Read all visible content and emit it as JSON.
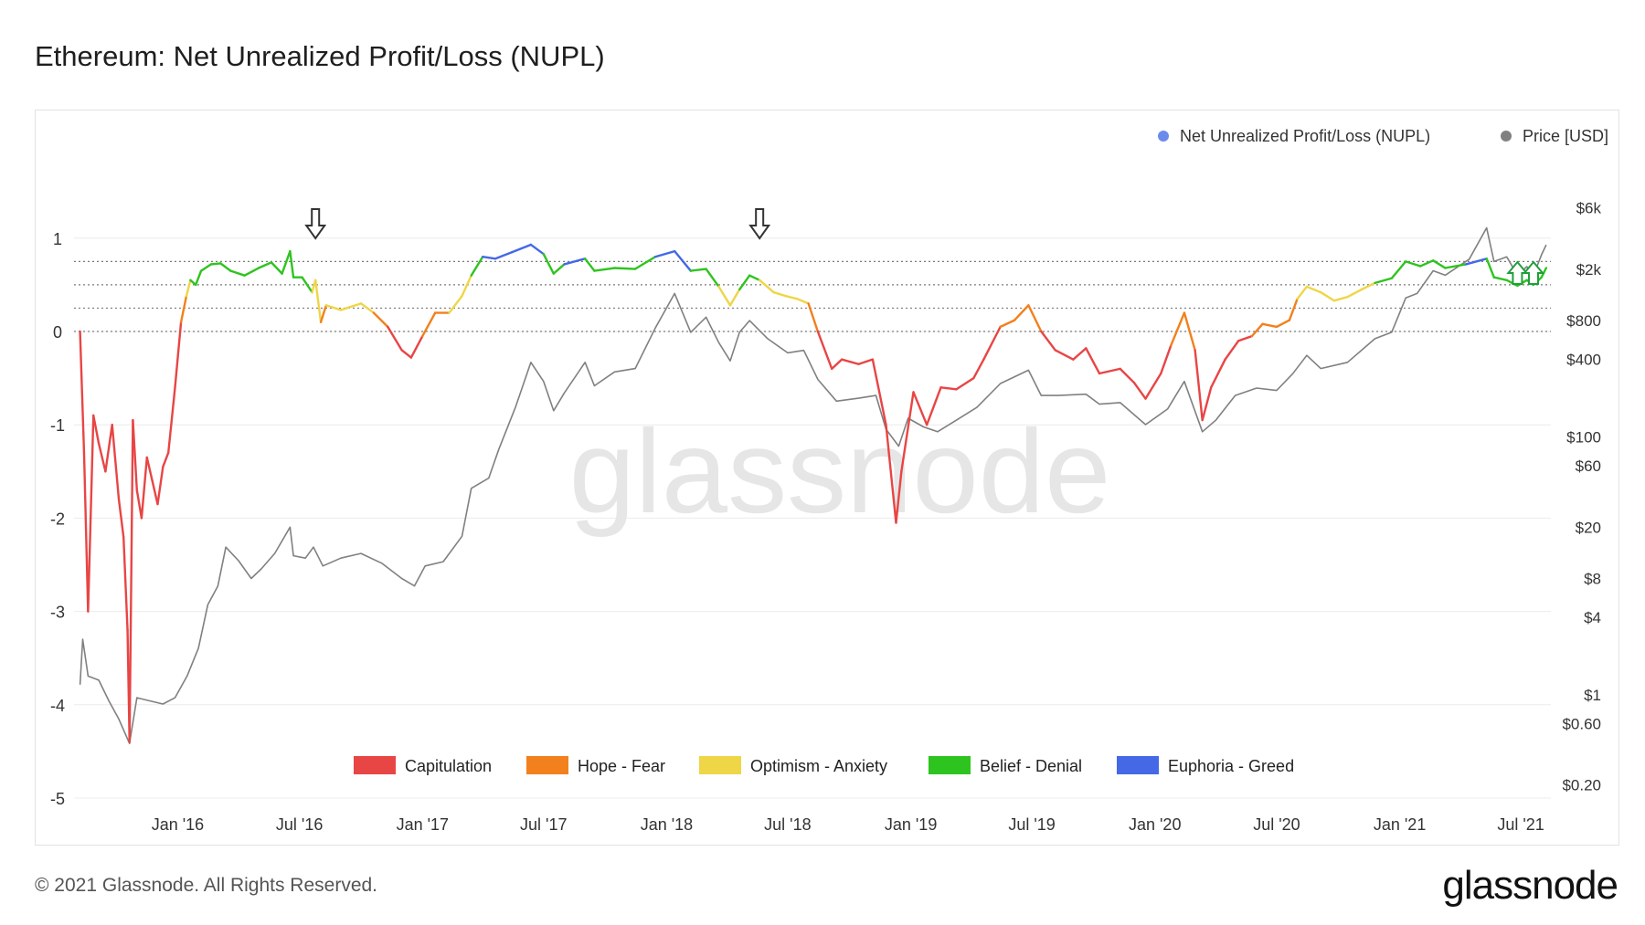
{
  "header": {
    "title": "Ethereum: Net Unrealized Profit/Loss (NUPL)"
  },
  "footer": {
    "copyright": "© 2021 Glassnode. All Rights Reserved.",
    "brand": "glassnode"
  },
  "chart_data": {
    "type": "line",
    "title": "Ethereum: Net Unrealized Profit/Loss (NUPL)",
    "watermark": "glassnode",
    "series": [
      {
        "name": "Net Unrealized Profit/Loss (NUPL)",
        "axis": "left",
        "legend_color": "#6b8bec",
        "points": [
          [
            "2015-08-08",
            0.0
          ],
          [
            "2015-08-14",
            -1.3
          ],
          [
            "2015-08-20",
            -3.0
          ],
          [
            "2015-08-28",
            -0.9
          ],
          [
            "2015-09-05",
            -1.2
          ],
          [
            "2015-09-15",
            -1.5
          ],
          [
            "2015-09-25",
            -1.0
          ],
          [
            "2015-10-05",
            -1.8
          ],
          [
            "2015-10-12",
            -2.2
          ],
          [
            "2015-10-18",
            -3.2
          ],
          [
            "2015-10-21",
            -4.4
          ],
          [
            "2015-10-26",
            -0.95
          ],
          [
            "2015-11-01",
            -1.7
          ],
          [
            "2015-11-08",
            -2.0
          ],
          [
            "2015-11-16",
            -1.35
          ],
          [
            "2015-11-24",
            -1.6
          ],
          [
            "2015-12-02",
            -1.85
          ],
          [
            "2015-12-10",
            -1.45
          ],
          [
            "2015-12-18",
            -1.3
          ],
          [
            "2015-12-28",
            -0.6
          ],
          [
            "2016-01-06",
            0.1
          ],
          [
            "2016-01-14",
            0.38
          ],
          [
            "2016-01-20",
            0.55
          ],
          [
            "2016-01-28",
            0.5
          ],
          [
            "2016-02-05",
            0.65
          ],
          [
            "2016-02-20",
            0.72
          ],
          [
            "2016-03-05",
            0.73
          ],
          [
            "2016-03-20",
            0.65
          ],
          [
            "2016-04-10",
            0.6
          ],
          [
            "2016-05-01",
            0.68
          ],
          [
            "2016-05-20",
            0.74
          ],
          [
            "2016-06-05",
            0.62
          ],
          [
            "2016-06-17",
            0.86
          ],
          [
            "2016-06-22",
            0.58
          ],
          [
            "2016-07-05",
            0.58
          ],
          [
            "2016-07-20",
            0.42
          ],
          [
            "2016-07-25",
            0.55
          ],
          [
            "2016-08-02",
            0.1
          ],
          [
            "2016-08-10",
            0.28
          ],
          [
            "2016-09-01",
            0.23
          ],
          [
            "2016-10-01",
            0.3
          ],
          [
            "2016-10-20",
            0.2
          ],
          [
            "2016-11-10",
            0.05
          ],
          [
            "2016-12-01",
            -0.2
          ],
          [
            "2016-12-15",
            -0.28
          ],
          [
            "2017-01-01",
            -0.05
          ],
          [
            "2017-01-20",
            0.2
          ],
          [
            "2017-02-10",
            0.2
          ],
          [
            "2017-03-01",
            0.38
          ],
          [
            "2017-03-15",
            0.6
          ],
          [
            "2017-04-01",
            0.8
          ],
          [
            "2017-04-20",
            0.78
          ],
          [
            "2017-05-15",
            0.85
          ],
          [
            "2017-06-12",
            0.93
          ],
          [
            "2017-07-01",
            0.83
          ],
          [
            "2017-07-16",
            0.62
          ],
          [
            "2017-08-01",
            0.72
          ],
          [
            "2017-09-01",
            0.78
          ],
          [
            "2017-09-15",
            0.65
          ],
          [
            "2017-10-15",
            0.68
          ],
          [
            "2017-11-15",
            0.67
          ],
          [
            "2017-12-15",
            0.8
          ],
          [
            "2018-01-13",
            0.86
          ],
          [
            "2018-02-06",
            0.65
          ],
          [
            "2018-03-01",
            0.67
          ],
          [
            "2018-03-20",
            0.48
          ],
          [
            "2018-04-06",
            0.28
          ],
          [
            "2018-04-20",
            0.45
          ],
          [
            "2018-05-05",
            0.6
          ],
          [
            "2018-05-20",
            0.55
          ],
          [
            "2018-06-10",
            0.42
          ],
          [
            "2018-06-28",
            0.38
          ],
          [
            "2018-07-15",
            0.35
          ],
          [
            "2018-08-01",
            0.3
          ],
          [
            "2018-08-15",
            0.0
          ],
          [
            "2018-09-05",
            -0.4
          ],
          [
            "2018-09-20",
            -0.3
          ],
          [
            "2018-10-15",
            -0.35
          ],
          [
            "2018-11-05",
            -0.3
          ],
          [
            "2018-11-25",
            -1.0
          ],
          [
            "2018-12-10",
            -2.05
          ],
          [
            "2018-12-18",
            -1.5
          ],
          [
            "2019-01-05",
            -0.65
          ],
          [
            "2019-01-25",
            -1.0
          ],
          [
            "2019-02-15",
            -0.6
          ],
          [
            "2019-03-10",
            -0.62
          ],
          [
            "2019-04-05",
            -0.5
          ],
          [
            "2019-04-20",
            -0.3
          ],
          [
            "2019-05-15",
            0.05
          ],
          [
            "2019-06-05",
            0.12
          ],
          [
            "2019-06-26",
            0.28
          ],
          [
            "2019-07-15",
            0.0
          ],
          [
            "2019-08-05",
            -0.2
          ],
          [
            "2019-09-01",
            -0.3
          ],
          [
            "2019-09-20",
            -0.18
          ],
          [
            "2019-10-10",
            -0.45
          ],
          [
            "2019-11-10",
            -0.4
          ],
          [
            "2019-12-01",
            -0.55
          ],
          [
            "2019-12-18",
            -0.72
          ],
          [
            "2020-01-10",
            -0.45
          ],
          [
            "2020-01-25",
            -0.15
          ],
          [
            "2020-02-14",
            0.2
          ],
          [
            "2020-03-01",
            -0.2
          ],
          [
            "2020-03-12",
            -0.95
          ],
          [
            "2020-03-25",
            -0.6
          ],
          [
            "2020-04-15",
            -0.3
          ],
          [
            "2020-05-05",
            -0.1
          ],
          [
            "2020-05-25",
            -0.05
          ],
          [
            "2020-06-10",
            0.08
          ],
          [
            "2020-07-01",
            0.05
          ],
          [
            "2020-07-20",
            0.12
          ],
          [
            "2020-08-01",
            0.35
          ],
          [
            "2020-08-15",
            0.48
          ],
          [
            "2020-09-05",
            0.42
          ],
          [
            "2020-09-25",
            0.33
          ],
          [
            "2020-10-15",
            0.37
          ],
          [
            "2020-11-05",
            0.45
          ],
          [
            "2020-11-25",
            0.52
          ],
          [
            "2020-12-20",
            0.57
          ],
          [
            "2021-01-10",
            0.75
          ],
          [
            "2021-02-01",
            0.7
          ],
          [
            "2021-02-20",
            0.76
          ],
          [
            "2021-03-10",
            0.68
          ],
          [
            "2021-04-10",
            0.72
          ],
          [
            "2021-05-11",
            0.78
          ],
          [
            "2021-05-22",
            0.58
          ],
          [
            "2021-06-10",
            0.55
          ],
          [
            "2021-06-26",
            0.49
          ],
          [
            "2021-07-10",
            0.55
          ],
          [
            "2021-07-20",
            0.5
          ],
          [
            "2021-08-01",
            0.58
          ],
          [
            "2021-08-08",
            0.68
          ]
        ]
      },
      {
        "name": "Price [USD]",
        "axis": "right",
        "legend_color": "#808080",
        "points": [
          [
            "2015-08-08",
            1.2
          ],
          [
            "2015-08-12",
            2.7
          ],
          [
            "2015-08-20",
            1.4
          ],
          [
            "2015-09-05",
            1.3
          ],
          [
            "2015-09-20",
            0.9
          ],
          [
            "2015-10-05",
            0.65
          ],
          [
            "2015-10-21",
            0.42
          ],
          [
            "2015-11-01",
            0.95
          ],
          [
            "2015-11-20",
            0.9
          ],
          [
            "2015-12-10",
            0.85
          ],
          [
            "2015-12-28",
            0.95
          ],
          [
            "2016-01-15",
            1.4
          ],
          [
            "2016-02-01",
            2.3
          ],
          [
            "2016-02-15",
            5.0
          ],
          [
            "2016-03-01",
            7.0
          ],
          [
            "2016-03-13",
            14.0
          ],
          [
            "2016-04-01",
            11.0
          ],
          [
            "2016-04-20",
            8.0
          ],
          [
            "2016-05-05",
            9.5
          ],
          [
            "2016-05-25",
            12.5
          ],
          [
            "2016-06-17",
            20.0
          ],
          [
            "2016-06-22",
            12.0
          ],
          [
            "2016-07-10",
            11.5
          ],
          [
            "2016-07-22",
            14.0
          ],
          [
            "2016-08-05",
            10.0
          ],
          [
            "2016-09-01",
            11.5
          ],
          [
            "2016-10-01",
            12.5
          ],
          [
            "2016-11-01",
            10.5
          ],
          [
            "2016-12-01",
            8.0
          ],
          [
            "2016-12-20",
            7.0
          ],
          [
            "2017-01-05",
            10.0
          ],
          [
            "2017-02-01",
            10.8
          ],
          [
            "2017-03-01",
            17.0
          ],
          [
            "2017-03-15",
            40.0
          ],
          [
            "2017-04-10",
            48.0
          ],
          [
            "2017-04-25",
            80.0
          ],
          [
            "2017-05-20",
            170.0
          ],
          [
            "2017-06-12",
            380.0
          ],
          [
            "2017-07-01",
            270.0
          ],
          [
            "2017-07-16",
            160.0
          ],
          [
            "2017-08-01",
            220.0
          ],
          [
            "2017-09-01",
            380.0
          ],
          [
            "2017-09-15",
            250.0
          ],
          [
            "2017-10-15",
            320.0
          ],
          [
            "2017-11-15",
            340.0
          ],
          [
            "2017-12-15",
            700.0
          ],
          [
            "2018-01-13",
            1300.0
          ],
          [
            "2018-02-06",
            650.0
          ],
          [
            "2018-03-01",
            850.0
          ],
          [
            "2018-03-20",
            540.0
          ],
          [
            "2018-04-06",
            390.0
          ],
          [
            "2018-04-20",
            650.0
          ],
          [
            "2018-05-05",
            800.0
          ],
          [
            "2018-06-01",
            580.0
          ],
          [
            "2018-07-01",
            450.0
          ],
          [
            "2018-07-25",
            470.0
          ],
          [
            "2018-08-15",
            280.0
          ],
          [
            "2018-09-12",
            190.0
          ],
          [
            "2018-10-15",
            200.0
          ],
          [
            "2018-11-10",
            210.0
          ],
          [
            "2018-11-25",
            115.0
          ],
          [
            "2018-12-14",
            85.0
          ],
          [
            "2018-12-28",
            140.0
          ],
          [
            "2019-01-20",
            120.0
          ],
          [
            "2019-02-10",
            110.0
          ],
          [
            "2019-03-10",
            135.0
          ],
          [
            "2019-04-10",
            170.0
          ],
          [
            "2019-05-15",
            260.0
          ],
          [
            "2019-06-26",
            330.0
          ],
          [
            "2019-07-15",
            210.0
          ],
          [
            "2019-08-10",
            210.0
          ],
          [
            "2019-09-20",
            215.0
          ],
          [
            "2019-10-10",
            180.0
          ],
          [
            "2019-11-10",
            185.0
          ],
          [
            "2019-12-18",
            125.0
          ],
          [
            "2020-01-20",
            165.0
          ],
          [
            "2020-02-14",
            270.0
          ],
          [
            "2020-03-12",
            110.0
          ],
          [
            "2020-04-01",
            135.0
          ],
          [
            "2020-04-30",
            210.0
          ],
          [
            "2020-06-01",
            240.0
          ],
          [
            "2020-07-01",
            230.0
          ],
          [
            "2020-07-25",
            310.0
          ],
          [
            "2020-08-15",
            430.0
          ],
          [
            "2020-09-05",
            340.0
          ],
          [
            "2020-10-15",
            380.0
          ],
          [
            "2020-11-25",
            580.0
          ],
          [
            "2020-12-20",
            650.0
          ],
          [
            "2021-01-10",
            1200.0
          ],
          [
            "2021-01-27",
            1300.0
          ],
          [
            "2021-02-20",
            1950.0
          ],
          [
            "2021-03-10",
            1800.0
          ],
          [
            "2021-04-15",
            2400.0
          ],
          [
            "2021-05-11",
            4200.0
          ],
          [
            "2021-05-22",
            2300.0
          ],
          [
            "2021-06-10",
            2500.0
          ],
          [
            "2021-06-26",
            1800.0
          ],
          [
            "2021-07-10",
            2100.0
          ],
          [
            "2021-07-20",
            1800.0
          ],
          [
            "2021-08-01",
            2600.0
          ],
          [
            "2021-08-08",
            3100.0
          ]
        ]
      }
    ],
    "zones": [
      {
        "name": "Capitulation",
        "color": "#e84545",
        "max": 0.0
      },
      {
        "name": "Hope - Fear",
        "color": "#f2801c",
        "min": 0.0,
        "max": 0.25
      },
      {
        "name": "Optimism - Anxiety",
        "color": "#eed647",
        "min": 0.25,
        "max": 0.5
      },
      {
        "name": "Belief - Denial",
        "color": "#2ec41f",
        "min": 0.5,
        "max": 0.75
      },
      {
        "name": "Euphoria - Greed",
        "color": "#4468e6",
        "min": 0.75
      }
    ],
    "reference_lines": [
      0.0,
      0.25,
      0.5,
      0.75
    ],
    "y_left": {
      "ticks": [
        1,
        0,
        -1,
        -2,
        -3,
        -4,
        -5
      ],
      "tick_labels": [
        "1",
        "0",
        "-1",
        "-2",
        "-3",
        "-4",
        "-5"
      ],
      "range": [
        -5,
        1.15
      ]
    },
    "y_right": {
      "scale": "log",
      "ticks": [
        6000,
        2000,
        800,
        400,
        100,
        60,
        20,
        8,
        4,
        1,
        0.6,
        0.2
      ],
      "tick_labels": [
        "$6k",
        "$2k",
        "$800",
        "$400",
        "$100",
        "$60",
        "$20",
        "$8",
        "$4",
        "$1",
        "$0.60",
        "$0.20"
      ]
    },
    "x_axis": {
      "range": [
        "2015-07-30",
        "2021-08-15"
      ],
      "ticks": [
        "2016-01-01",
        "2016-07-01",
        "2017-01-01",
        "2017-07-01",
        "2018-01-01",
        "2018-07-01",
        "2019-01-01",
        "2019-07-01",
        "2020-01-01",
        "2020-07-01",
        "2021-01-01",
        "2021-07-01"
      ],
      "tick_labels": [
        "Jan '16",
        "Jul '16",
        "Jan '17",
        "Jul '17",
        "Jan '18",
        "Jul '18",
        "Jan '19",
        "Jul '19",
        "Jan '20",
        "Jul '20",
        "Jan '21",
        "Jul '21"
      ]
    },
    "grid": "horizontal",
    "legend_placement": "top-right",
    "zone_legend_placement": "bottom-center",
    "annotations": [
      {
        "kind": "arrow-down",
        "date": "2016-07-25",
        "color": "#333333"
      },
      {
        "kind": "arrow-down",
        "date": "2018-05-20",
        "color": "#333333"
      },
      {
        "kind": "arrow-up",
        "date": "2021-06-26",
        "color": "#1f9e3a"
      },
      {
        "kind": "arrow-up",
        "date": "2021-07-20",
        "color": "#1f9e3a"
      }
    ]
  }
}
